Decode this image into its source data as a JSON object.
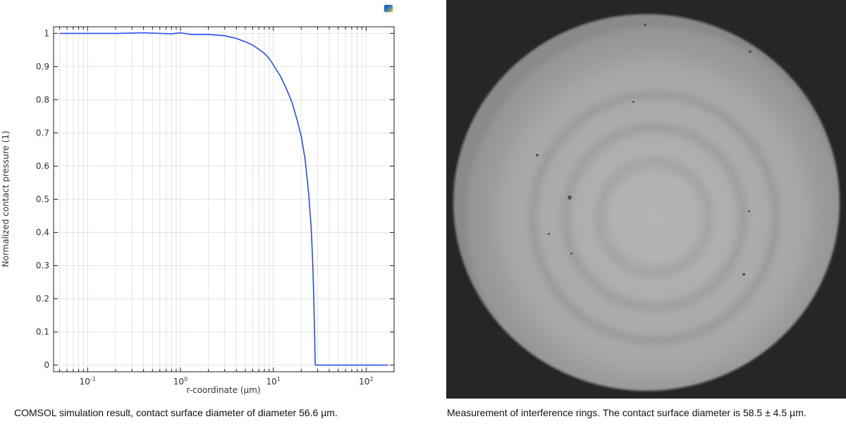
{
  "chart_data": {
    "type": "line",
    "title": "",
    "xlabel": "r-coordinate (µm)",
    "ylabel": "Normalized contact pressure (1)",
    "xscale": "log",
    "xlim": [
      0.043,
      200
    ],
    "ylim": [
      -0.02,
      1.02
    ],
    "grid": true,
    "x_ticks": [
      {
        "base": "10",
        "exp": "-1",
        "value": 0.1
      },
      {
        "base": "10",
        "exp": "0",
        "value": 1
      },
      {
        "base": "10",
        "exp": "1",
        "value": 10
      },
      {
        "base": "10",
        "exp": "2",
        "value": 100
      }
    ],
    "y_ticks": [
      "0",
      "0.1",
      "0.2",
      "0.3",
      "0.4",
      "0.5",
      "0.6",
      "0.7",
      "0.8",
      "0.9",
      "1"
    ],
    "series": [
      {
        "color": "#2a4bff",
        "x": [
          0.05,
          0.2,
          0.4,
          0.8,
          1.0,
          1.3,
          2,
          3,
          4,
          5,
          6,
          7,
          8,
          9,
          10,
          12,
          14,
          16,
          18,
          20,
          22,
          24,
          25.5,
          26.5,
          27.3,
          27.8,
          28.3,
          172
        ],
        "y": [
          1,
          1,
          1.002,
          0.999,
          1.002,
          0.997,
          0.997,
          0.993,
          0.985,
          0.975,
          0.965,
          0.952,
          0.94,
          0.925,
          0.905,
          0.87,
          0.83,
          0.79,
          0.74,
          0.69,
          0.62,
          0.52,
          0.42,
          0.32,
          0.2,
          0.1,
          0,
          0
        ]
      }
    ]
  },
  "captions": {
    "left": "COMSOL simulation result, contact surface diameter of diameter 56.6 µm.",
    "right": "Measurement of interference rings. The contact surface diameter is 58.5 ± 4.5 µm."
  },
  "icons": {
    "logo": "comsol-logo-icon"
  }
}
